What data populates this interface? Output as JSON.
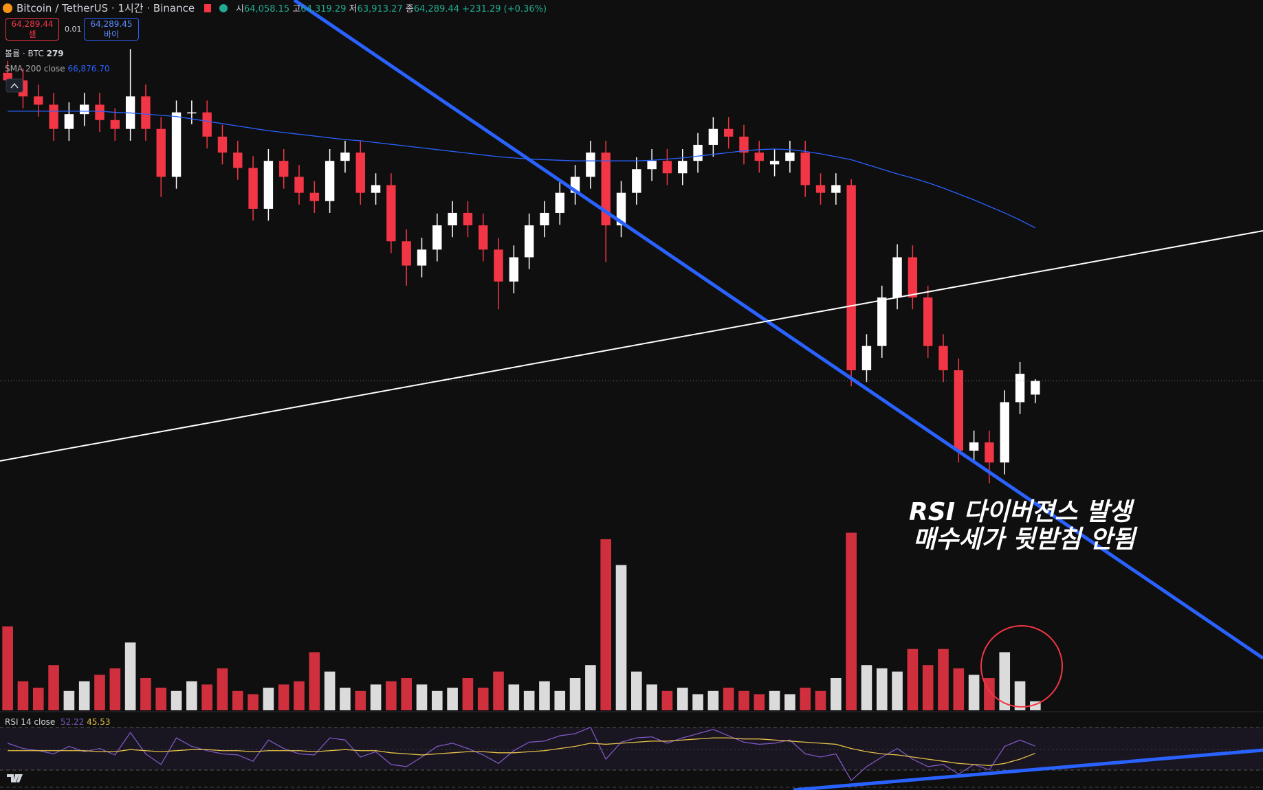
{
  "header": {
    "symbol": "Bitcoin / TetherUS · 1시간 · Binance",
    "ohlc": [
      {
        "label": "시",
        "value": "64,058.15"
      },
      {
        "label": "고",
        "value": "64,319.29"
      },
      {
        "label": "저",
        "value": "63,913.27"
      },
      {
        "label": "종",
        "value": "64,289.44"
      }
    ],
    "change": "+231.29 (+0.36%)",
    "sell": {
      "price": "64,289.44",
      "label": "셀"
    },
    "spread": "0.01",
    "buy": {
      "price": "64,289.45",
      "label": "바이"
    }
  },
  "annotation": [
    "RSI 다이버젼스 발생",
    "매수세가 뒷받침 안됨"
  ],
  "chart_data": [
    {
      "type": "candlestick",
      "ylim": [
        58720,
        70730
      ],
      "up_color": "#ffffff",
      "down_color": "#f23645",
      "open": [
        69500,
        69370,
        69100,
        68960,
        68550,
        68800,
        68960,
        68700,
        68550,
        69100,
        68550,
        67740,
        68830,
        68830,
        68420,
        68150,
        67890,
        67200,
        68010,
        67740,
        67470,
        67330,
        68010,
        68150,
        67470,
        67600,
        66650,
        66240,
        66510,
        66920,
        67130,
        66920,
        66510,
        65970,
        66380,
        66920,
        67130,
        67470,
        67740,
        68150,
        66920,
        67470,
        67870,
        68010,
        67800,
        68010,
        68280,
        68550,
        68420,
        68150,
        67950,
        68010,
        68150,
        67600,
        67470,
        67600,
        64470,
        64880,
        65700,
        66380,
        65700,
        64880,
        64470,
        63110,
        63250,
        62910,
        63930,
        64058.15
      ],
      "high": [
        69700,
        69570,
        69300,
        69160,
        69000,
        69160,
        69160,
        68900,
        69900,
        69300,
        68750,
        69030,
        69030,
        69030,
        68620,
        68350,
        68090,
        68210,
        68210,
        67940,
        67670,
        68210,
        68350,
        68350,
        67800,
        67800,
        66850,
        66710,
        67120,
        67330,
        67330,
        67120,
        66710,
        66580,
        67120,
        67330,
        67670,
        67940,
        68350,
        68350,
        67670,
        68070,
        68210,
        68210,
        68210,
        68480,
        68750,
        68750,
        68620,
        68350,
        68210,
        68350,
        68350,
        67800,
        67800,
        67700,
        65080,
        65900,
        66600,
        66580,
        65900,
        65080,
        64670,
        63450,
        63450,
        64130,
        64610,
        64319.29
      ],
      "low": [
        69170,
        68900,
        68760,
        68350,
        68350,
        68600,
        68500,
        68350,
        68350,
        68350,
        67400,
        67540,
        68630,
        68220,
        67950,
        67690,
        67000,
        67000,
        67540,
        67270,
        67130,
        67130,
        67810,
        67270,
        67270,
        66450,
        65900,
        66040,
        66310,
        66720,
        66720,
        66310,
        65500,
        65770,
        66180,
        66720,
        66930,
        67270,
        67540,
        66300,
        66720,
        67270,
        67670,
        67600,
        67600,
        67810,
        68080,
        68220,
        67950,
        67810,
        67750,
        67810,
        67400,
        67270,
        67270,
        64200,
        64270,
        64680,
        65500,
        65500,
        64680,
        64270,
        62910,
        62910,
        62560,
        62710,
        63730,
        63913.27
      ],
      "close": [
        69370,
        69100,
        68960,
        68550,
        68800,
        68960,
        68700,
        68550,
        69100,
        68550,
        67740,
        68830,
        68830,
        68420,
        68150,
        67890,
        67200,
        68010,
        67740,
        67470,
        67330,
        68010,
        68150,
        67470,
        67600,
        66650,
        66240,
        66510,
        66920,
        67130,
        66920,
        66510,
        65970,
        66380,
        66920,
        67130,
        67470,
        67740,
        68150,
        66920,
        67470,
        67870,
        68010,
        67800,
        68010,
        68280,
        68550,
        68420,
        68150,
        68010,
        68010,
        68150,
        67600,
        67470,
        67600,
        64470,
        64880,
        65700,
        66380,
        65700,
        64880,
        64470,
        63110,
        63250,
        62910,
        63930,
        64410,
        64289.44
      ],
      "sma": {
        "name": "SMA 200 close",
        "color": "#2962ff",
        "last_label": "66,876.70",
        "values": [
          68850,
          68850,
          68850,
          68850,
          68850,
          68850,
          68850,
          68830,
          68820,
          68800,
          68780,
          68760,
          68720,
          68680,
          68640,
          68600,
          68560,
          68520,
          68490,
          68460,
          68430,
          68400,
          68370,
          68350,
          68320,
          68290,
          68260,
          68230,
          68200,
          68170,
          68140,
          68110,
          68080,
          68060,
          68040,
          68030,
          68020,
          68010,
          68010,
          68010,
          68010,
          68010,
          68020,
          68040,
          68060,
          68090,
          68120,
          68150,
          68180,
          68200,
          68210,
          68200,
          68170,
          68130,
          68080,
          68030,
          67950,
          67870,
          67790,
          67720,
          67640,
          67550,
          67450,
          67350,
          67240,
          67130,
          67010,
          66876.7
        ]
      }
    },
    {
      "type": "bar",
      "name": "볼륨 · BTC",
      "last_label": "279",
      "ylim": [
        0,
        22000
      ],
      "values": [
        2600,
        900,
        700,
        1400,
        600,
        900,
        1100,
        1300,
        2100,
        1000,
        700,
        600,
        900,
        800,
        1300,
        600,
        500,
        700,
        800,
        900,
        1800,
        1200,
        700,
        600,
        800,
        900,
        1000,
        800,
        600,
        700,
        1000,
        700,
        1200,
        800,
        600,
        900,
        600,
        1000,
        1400,
        5300,
        4500,
        1200,
        800,
        600,
        700,
        500,
        600,
        700,
        600,
        500,
        600,
        500,
        700,
        600,
        1000,
        5500,
        1400,
        1300,
        1200,
        1900,
        1400,
        1900,
        1300,
        1100,
        1000,
        1800,
        900,
        279
      ]
    },
    {
      "type": "line",
      "name": "RSI 14 close",
      "ylim": [
        11,
        84
      ],
      "series": [
        {
          "color": "#7e57c2",
          "last_label": "52.22",
          "values": [
            55,
            50,
            48,
            45,
            52,
            47,
            50,
            44,
            65,
            45,
            35,
            60,
            52,
            48,
            45,
            44,
            38,
            58,
            50,
            45,
            44,
            60,
            58,
            42,
            47,
            35,
            33,
            42,
            52,
            55,
            50,
            44,
            36,
            48,
            56,
            57,
            62,
            64,
            70,
            40,
            56,
            60,
            61,
            55,
            60,
            64,
            68,
            62,
            56,
            54,
            55,
            58,
            45,
            42,
            45,
            20,
            33,
            42,
            50,
            40,
            33,
            35,
            26,
            35,
            30,
            52,
            58,
            52.22
          ]
        },
        {
          "color": "#e5c04a",
          "last_label": "45.53",
          "values": [
            48,
            48,
            48,
            48,
            48,
            48,
            47,
            47,
            49,
            48,
            47,
            48,
            49,
            49,
            48,
            48,
            47,
            48,
            48,
            48,
            47,
            48,
            49,
            48,
            48,
            46,
            45,
            44,
            45,
            46,
            47,
            47,
            46,
            46,
            47,
            48,
            50,
            52,
            55,
            54,
            55,
            56,
            57,
            57,
            58,
            59,
            60,
            60,
            59,
            59,
            58,
            57,
            56,
            55,
            54,
            50,
            47,
            45,
            44,
            42,
            40,
            38,
            36,
            35,
            34,
            36,
            40,
            45.53
          ]
        }
      ]
    }
  ]
}
